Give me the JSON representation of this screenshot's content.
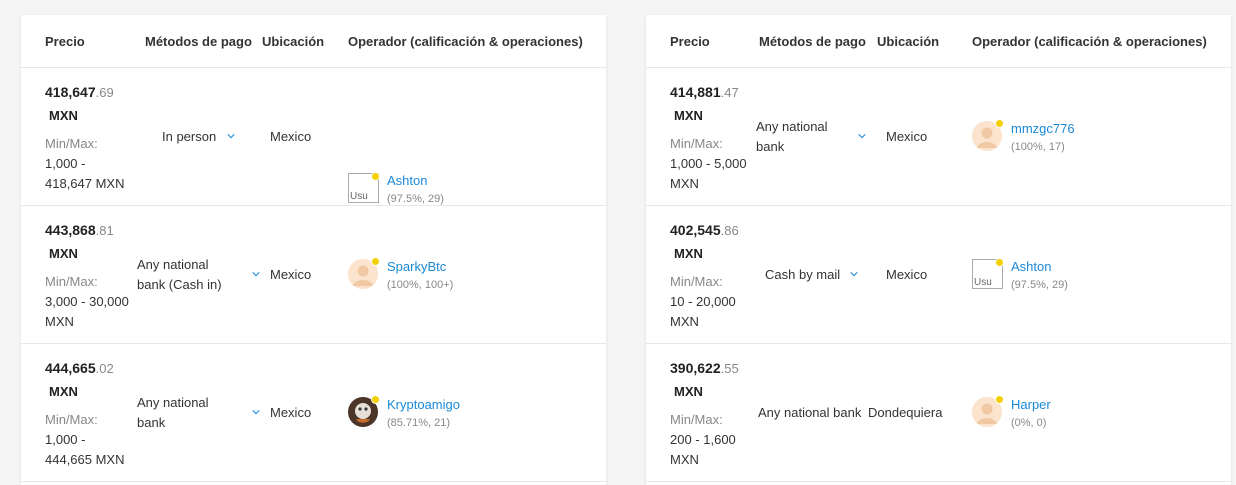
{
  "header": {
    "price": "Precio",
    "methods": "Métodos de pago",
    "location": "Ubicación",
    "operator": "Operador (calificación & operaciones)"
  },
  "left": [
    {
      "price_int": "418,647",
      "price_dec": ".69",
      "currency": "MXN",
      "minmax_label": "Min/Max:",
      "range_line1": "1,000 -",
      "range_line2": "418,647 MXN",
      "method_line1": "In person",
      "method_line2": "",
      "location": "Mexico",
      "operator": "Ashton",
      "stats": "(97.5%, 29)",
      "avatar": "broken-image",
      "avatar_alt": "Usu"
    },
    {
      "price_int": "443,868",
      "price_dec": ".81",
      "currency": "MXN",
      "minmax_label": "Min/Max:",
      "range_line1": "3,000 - 30,000",
      "range_line2": "MXN",
      "method_line1": "Any national",
      "method_line2": "bank (Cash in)",
      "location": "Mexico",
      "operator": "SparkyBtc",
      "stats": "(100%, 100+)",
      "avatar": "default-user-icon"
    },
    {
      "price_int": "444,665",
      "price_dec": ".02",
      "currency": "MXN",
      "minmax_label": "Min/Max:",
      "range_line1": "1,000 -",
      "range_line2": "444,665 MXN",
      "method_line1": "Any national",
      "method_line2": "bank",
      "location": "Mexico",
      "operator": "Kryptoamigo",
      "stats": "(85.71%, 21)",
      "avatar": "custom-photo"
    }
  ],
  "right": [
    {
      "price_int": "414,881",
      "price_dec": ".47",
      "currency": "MXN",
      "minmax_label": "Min/Max:",
      "range_line1": "1,000 - 5,000",
      "range_line2": "MXN",
      "method_line1": "Any national",
      "method_line2": "bank",
      "location": "Mexico",
      "operator": "mmzgc776",
      "stats": "(100%, 17)",
      "avatar": "default-user-icon"
    },
    {
      "price_int": "402,545",
      "price_dec": ".86",
      "currency": "MXN",
      "minmax_label": "Min/Max:",
      "range_line1": "10 - 20,000",
      "range_line2": "MXN",
      "method_line1": "Cash by mail",
      "method_line2": "",
      "location": "Mexico",
      "operator": "Ashton",
      "stats": "(97.5%, 29)",
      "avatar": "broken-image",
      "avatar_alt": "Usu"
    },
    {
      "price_int": "390,622",
      "price_dec": ".55",
      "currency": "MXN",
      "minmax_label": "Min/Max:",
      "range_line1": "200 - 1,600",
      "range_line2": "MXN",
      "method_line1": "Any national bank",
      "method_line2": "",
      "location": "Dondequiera",
      "operator": "Harper",
      "stats": "(0%, 0)",
      "avatar": "default-user-icon"
    }
  ],
  "colors": {
    "link": "#1a8ad8",
    "online_dot": "#f5d000",
    "chevron": "#1a8ad8"
  }
}
